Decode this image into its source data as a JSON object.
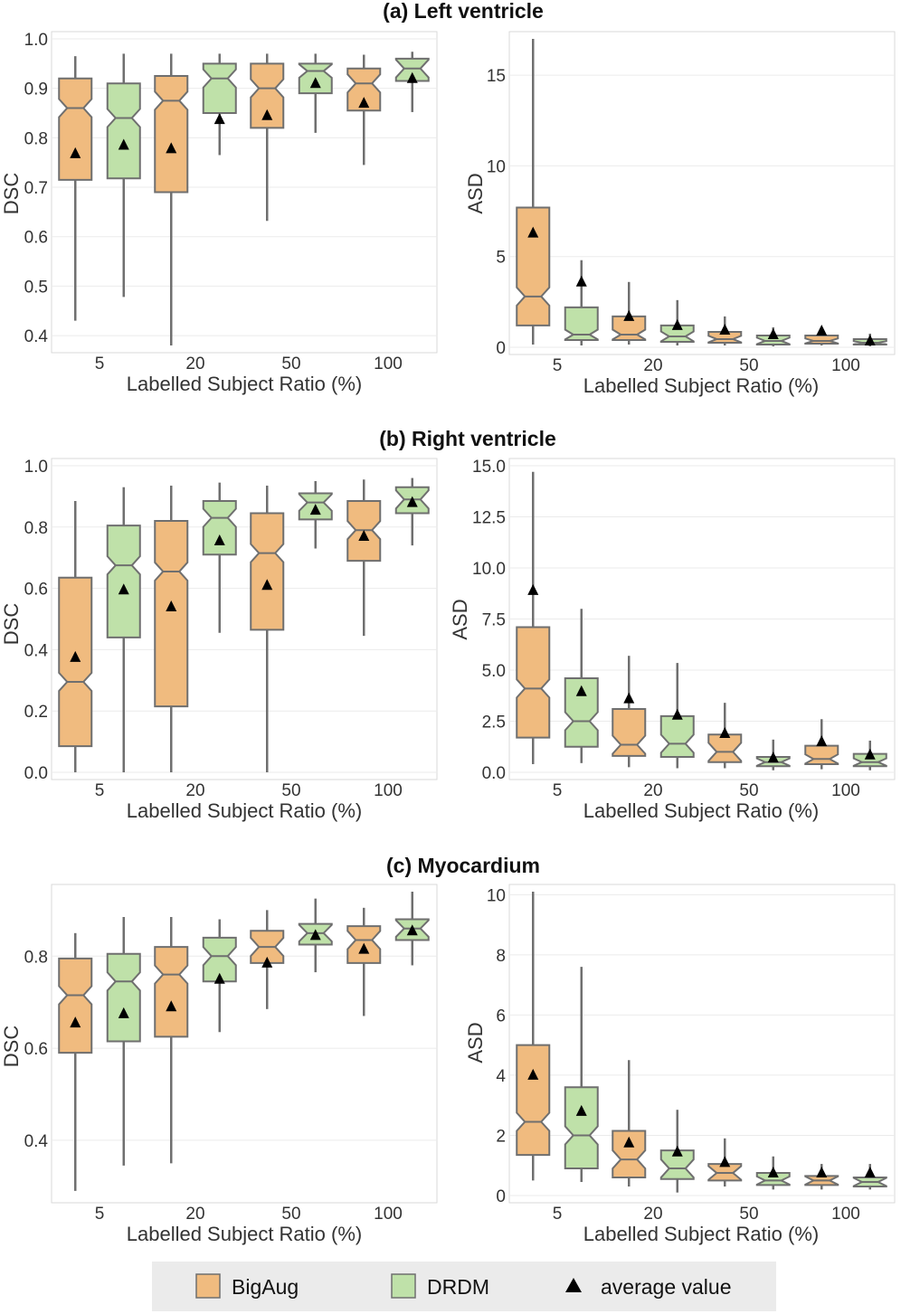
{
  "colors": {
    "bigaug": "#f0bb7f",
    "drdm": "#bfe1a9",
    "edge": "#6f6f6f",
    "panel": "#ffffff",
    "grid": "#ebebeb",
    "legend_bg": "#ebebeb"
  },
  "legend": {
    "items": [
      "BigAug",
      "DRDM",
      "average value"
    ]
  },
  "chart_data": [
    {
      "section_title": "(a) Left ventricle",
      "type": "boxplot",
      "metric": "DSC",
      "xlabel": "Labelled Subject Ratio (%)",
      "ylabel": "DSC",
      "categories": [
        "5",
        "20",
        "50",
        "100"
      ],
      "ylim": [
        0.38,
        1.0
      ],
      "yticks": [
        "0.4",
        "0.5",
        "0.6",
        "0.7",
        "0.8",
        "0.9",
        "1.0"
      ],
      "series": [
        {
          "name": "BigAug",
          "boxes": [
            {
              "min": 0.43,
              "q1": 0.715,
              "median": 0.86,
              "q3": 0.92,
              "max": 0.965,
              "mean": 0.768
            },
            {
              "min": 0.38,
              "q1": 0.69,
              "median": 0.875,
              "q3": 0.925,
              "max": 0.97,
              "mean": 0.778
            },
            {
              "min": 0.632,
              "q1": 0.82,
              "median": 0.9,
              "q3": 0.95,
              "max": 0.97,
              "mean": 0.845
            },
            {
              "min": 0.745,
              "q1": 0.855,
              "median": 0.91,
              "q3": 0.94,
              "max": 0.968,
              "mean": 0.87
            }
          ]
        },
        {
          "name": "DRDM",
          "boxes": [
            {
              "min": 0.478,
              "q1": 0.718,
              "median": 0.84,
              "q3": 0.91,
              "max": 0.97,
              "mean": 0.785
            },
            {
              "min": 0.765,
              "q1": 0.85,
              "median": 0.92,
              "q3": 0.95,
              "max": 0.97,
              "mean": 0.837
            },
            {
              "min": 0.81,
              "q1": 0.89,
              "median": 0.935,
              "q3": 0.95,
              "max": 0.97,
              "mean": 0.91
            },
            {
              "min": 0.852,
              "q1": 0.915,
              "median": 0.94,
              "q3": 0.96,
              "max": 0.974,
              "mean": 0.92
            }
          ]
        }
      ]
    },
    {
      "type": "boxplot",
      "metric": "ASD",
      "xlabel": "Labelled Subject Ratio (%)",
      "ylabel": "ASD",
      "categories": [
        "5",
        "20",
        "50",
        "100"
      ],
      "ylim": [
        0,
        17.0
      ],
      "yticks": [
        "0",
        "5",
        "10",
        "15"
      ],
      "series": [
        {
          "name": "BigAug",
          "boxes": [
            {
              "min": 0.15,
              "q1": 1.2,
              "median": 2.8,
              "q3": 7.7,
              "max": 17.0,
              "mean": 6.3
            },
            {
              "min": 0.15,
              "q1": 0.4,
              "median": 0.7,
              "q3": 1.7,
              "max": 3.6,
              "mean": 1.7
            },
            {
              "min": 0.1,
              "q1": 0.25,
              "median": 0.45,
              "q3": 0.85,
              "max": 1.7,
              "mean": 0.95
            },
            {
              "min": 0.1,
              "q1": 0.2,
              "median": 0.35,
              "q3": 0.65,
              "max": 0.95,
              "mean": 0.9
            }
          ]
        },
        {
          "name": "DRDM",
          "boxes": [
            {
              "min": 0.1,
              "q1": 0.4,
              "median": 0.7,
              "q3": 2.2,
              "max": 4.8,
              "mean": 3.6
            },
            {
              "min": 0.1,
              "q1": 0.3,
              "median": 0.6,
              "q3": 1.2,
              "max": 2.6,
              "mean": 1.2
            },
            {
              "min": 0.05,
              "q1": 0.15,
              "median": 0.35,
              "q3": 0.65,
              "max": 1.1,
              "mean": 0.7
            },
            {
              "min": 0.05,
              "q1": 0.15,
              "median": 0.25,
              "q3": 0.45,
              "max": 0.75,
              "mean": 0.35
            }
          ]
        }
      ]
    },
    {
      "section_title": "(b) Right ventricle",
      "type": "boxplot",
      "metric": "DSC",
      "xlabel": "Labelled Subject Ratio (%)",
      "ylabel": "DSC",
      "categories": [
        "5",
        "20",
        "50",
        "100"
      ],
      "ylim": [
        0,
        1.0
      ],
      "yticks": [
        "0.0",
        "0.2",
        "0.4",
        "0.6",
        "0.8",
        "1.0"
      ],
      "series": [
        {
          "name": "BigAug",
          "boxes": [
            {
              "min": 0.0,
              "q1": 0.085,
              "median": 0.295,
              "q3": 0.635,
              "max": 0.885,
              "mean": 0.375
            },
            {
              "min": 0.0,
              "q1": 0.215,
              "median": 0.655,
              "q3": 0.82,
              "max": 0.935,
              "mean": 0.54
            },
            {
              "min": 0.0,
              "q1": 0.465,
              "median": 0.715,
              "q3": 0.845,
              "max": 0.935,
              "mean": 0.61
            },
            {
              "min": 0.445,
              "q1": 0.69,
              "median": 0.79,
              "q3": 0.885,
              "max": 0.955,
              "mean": 0.77
            }
          ]
        },
        {
          "name": "DRDM",
          "boxes": [
            {
              "min": 0.0,
              "q1": 0.44,
              "median": 0.675,
              "q3": 0.805,
              "max": 0.93,
              "mean": 0.595
            },
            {
              "min": 0.455,
              "q1": 0.71,
              "median": 0.83,
              "q3": 0.885,
              "max": 0.945,
              "mean": 0.755
            },
            {
              "min": 0.73,
              "q1": 0.825,
              "median": 0.88,
              "q3": 0.91,
              "max": 0.95,
              "mean": 0.855
            },
            {
              "min": 0.74,
              "q1": 0.845,
              "median": 0.89,
              "q3": 0.93,
              "max": 0.96,
              "mean": 0.88
            }
          ]
        }
      ]
    },
    {
      "type": "boxplot",
      "metric": "ASD",
      "xlabel": "Labelled Subject Ratio (%)",
      "ylabel": "ASD",
      "categories": [
        "5",
        "20",
        "50",
        "100"
      ],
      "ylim": [
        0,
        15.0
      ],
      "yticks": [
        "0.0",
        "2.5",
        "5.0",
        "7.5",
        "10.0",
        "12.5",
        "15.0"
      ],
      "series": [
        {
          "name": "BigAug",
          "boxes": [
            {
              "min": 0.4,
              "q1": 1.7,
              "median": 4.1,
              "q3": 7.1,
              "max": 14.7,
              "mean": 8.9
            },
            {
              "min": 0.25,
              "q1": 0.8,
              "median": 1.35,
              "q3": 3.1,
              "max": 5.7,
              "mean": 3.6
            },
            {
              "min": 0.2,
              "q1": 0.5,
              "median": 1.0,
              "q3": 1.85,
              "max": 3.4,
              "mean": 1.9
            },
            {
              "min": 0.15,
              "q1": 0.4,
              "median": 0.65,
              "q3": 1.3,
              "max": 2.6,
              "mean": 1.5
            }
          ]
        },
        {
          "name": "DRDM",
          "boxes": [
            {
              "min": 0.45,
              "q1": 1.25,
              "median": 2.5,
              "q3": 4.6,
              "max": 8.0,
              "mean": 3.95
            },
            {
              "min": 0.2,
              "q1": 0.75,
              "median": 1.4,
              "q3": 2.75,
              "max": 5.35,
              "mean": 2.8
            },
            {
              "min": 0.1,
              "q1": 0.3,
              "median": 0.5,
              "q3": 0.75,
              "max": 1.6,
              "mean": 0.7
            },
            {
              "min": 0.1,
              "q1": 0.3,
              "median": 0.5,
              "q3": 0.9,
              "max": 1.55,
              "mean": 0.85
            }
          ]
        }
      ]
    },
    {
      "section_title": "(c) Myocardium",
      "type": "boxplot",
      "metric": "DSC",
      "xlabel": "Labelled Subject Ratio (%)",
      "ylabel": "DSC",
      "categories": [
        "5",
        "20",
        "50",
        "100"
      ],
      "ylim": [
        0.28,
        0.94
      ],
      "yticks": [
        "0.4",
        "0.6",
        "0.8"
      ],
      "series": [
        {
          "name": "BigAug",
          "boxes": [
            {
              "min": 0.29,
              "q1": 0.59,
              "median": 0.715,
              "q3": 0.795,
              "max": 0.85,
              "mean": 0.655
            },
            {
              "min": 0.35,
              "q1": 0.625,
              "median": 0.76,
              "q3": 0.82,
              "max": 0.885,
              "mean": 0.69
            },
            {
              "min": 0.685,
              "q1": 0.785,
              "median": 0.82,
              "q3": 0.855,
              "max": 0.9,
              "mean": 0.785
            },
            {
              "min": 0.67,
              "q1": 0.785,
              "median": 0.835,
              "q3": 0.865,
              "max": 0.905,
              "mean": 0.815
            }
          ]
        },
        {
          "name": "DRDM",
          "boxes": [
            {
              "min": 0.345,
              "q1": 0.615,
              "median": 0.745,
              "q3": 0.805,
              "max": 0.885,
              "mean": 0.675
            },
            {
              "min": 0.635,
              "q1": 0.745,
              "median": 0.8,
              "q3": 0.84,
              "max": 0.88,
              "mean": 0.75
            },
            {
              "min": 0.765,
              "q1": 0.825,
              "median": 0.85,
              "q3": 0.87,
              "max": 0.925,
              "mean": 0.845
            },
            {
              "min": 0.78,
              "q1": 0.835,
              "median": 0.86,
              "q3": 0.88,
              "max": 0.94,
              "mean": 0.855
            }
          ]
        }
      ]
    },
    {
      "type": "boxplot",
      "metric": "ASD",
      "xlabel": "Labelled Subject Ratio (%)",
      "ylabel": "ASD",
      "categories": [
        "5",
        "20",
        "50",
        "100"
      ],
      "ylim": [
        0,
        10.1
      ],
      "yticks": [
        "0",
        "2",
        "4",
        "6",
        "8",
        "10"
      ],
      "series": [
        {
          "name": "BigAug",
          "boxes": [
            {
              "min": 0.5,
              "q1": 1.35,
              "median": 2.45,
              "q3": 5.0,
              "max": 10.1,
              "mean": 4.0
            },
            {
              "min": 0.3,
              "q1": 0.6,
              "median": 1.2,
              "q3": 2.15,
              "max": 4.5,
              "mean": 1.75
            },
            {
              "min": 0.3,
              "q1": 0.5,
              "median": 0.75,
              "q3": 1.05,
              "max": 1.9,
              "mean": 1.1
            },
            {
              "min": 0.2,
              "q1": 0.35,
              "median": 0.5,
              "q3": 0.65,
              "max": 1.05,
              "mean": 0.75
            }
          ]
        },
        {
          "name": "DRDM",
          "boxes": [
            {
              "min": 0.45,
              "q1": 0.9,
              "median": 2.0,
              "q3": 3.6,
              "max": 7.6,
              "mean": 2.8
            },
            {
              "min": 0.1,
              "q1": 0.55,
              "median": 0.9,
              "q3": 1.5,
              "max": 2.85,
              "mean": 1.45
            },
            {
              "min": 0.2,
              "q1": 0.35,
              "median": 0.5,
              "q3": 0.75,
              "max": 1.3,
              "mean": 0.75
            },
            {
              "min": 0.2,
              "q1": 0.3,
              "median": 0.45,
              "q3": 0.6,
              "max": 1.05,
              "mean": 0.75
            }
          ]
        }
      ]
    }
  ]
}
